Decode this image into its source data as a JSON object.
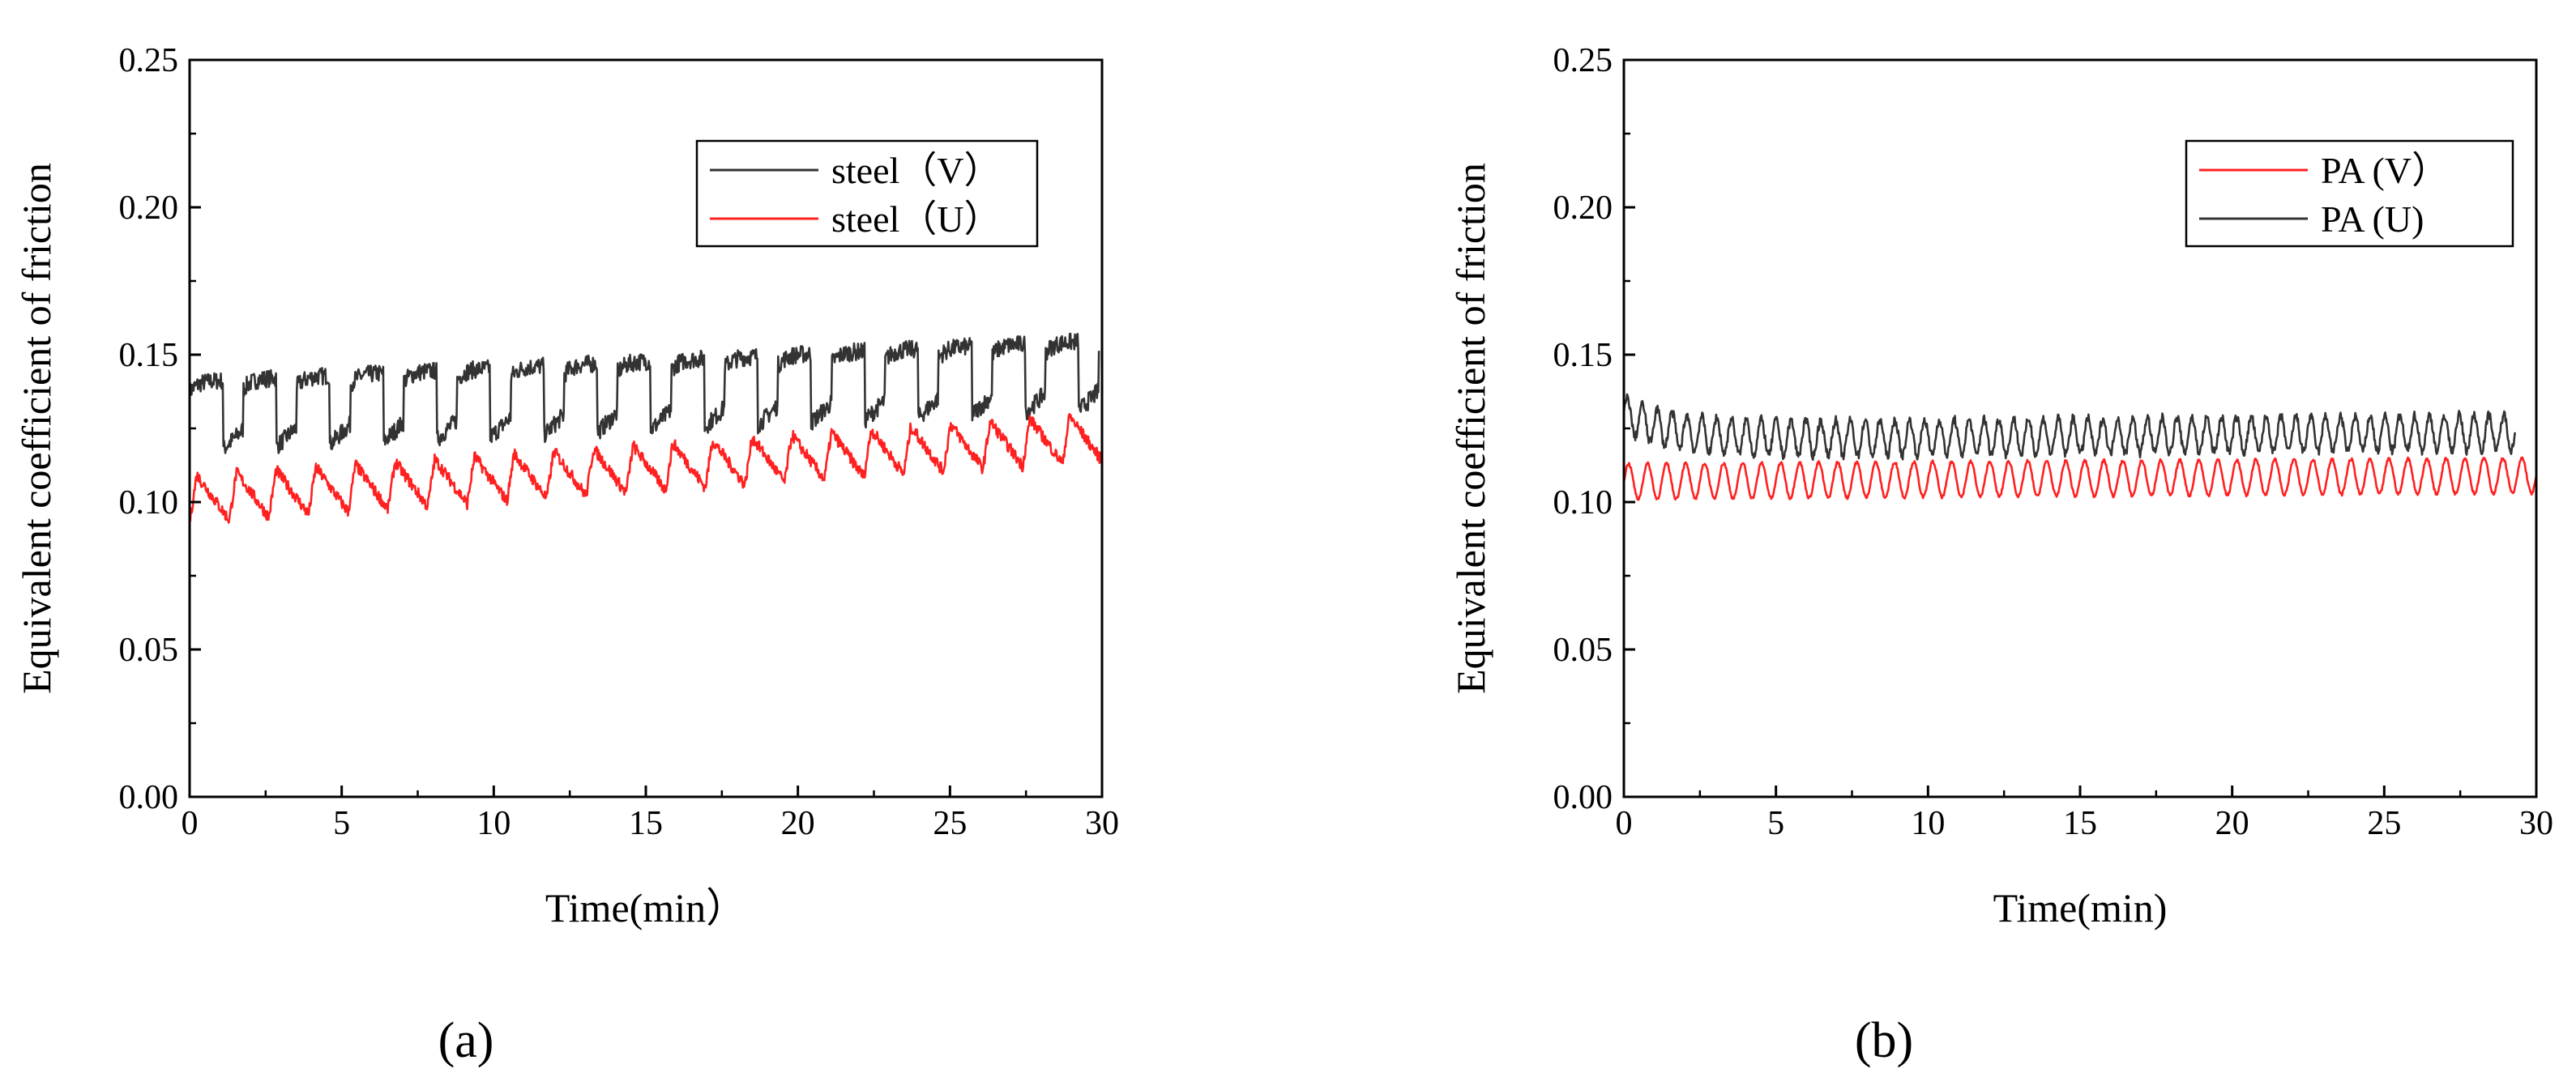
{
  "chart_data": [
    {
      "type": "line",
      "panel_label": "(a)",
      "xlabel": "Time(min）",
      "ylabel": "Equivalent coefficient of friction",
      "xlim": [
        0,
        30
      ],
      "ylim": [
        0,
        0.25
      ],
      "xticks": [
        0,
        5,
        10,
        15,
        20,
        25,
        30
      ],
      "yticks": [
        0.0,
        0.05,
        0.1,
        0.15,
        0.2,
        0.25
      ],
      "xtick_labels": [
        "0",
        "5",
        "10",
        "15",
        "20",
        "25",
        "30"
      ],
      "ytick_labels": [
        "0.00",
        "0.05",
        "0.10",
        "0.15",
        "0.20",
        "0.25"
      ],
      "grid": false,
      "legend_position": "top-right",
      "series": [
        {
          "name": "steel（V）",
          "color": "#333333",
          "x_start": 0,
          "x_end": 29.9,
          "cycles": 17,
          "base_start": 0.129,
          "base_end": 0.143,
          "amplitude": 0.013,
          "noise": 0.003,
          "shape": "square"
        },
        {
          "name": "steel（U）",
          "color": "#ff2020",
          "x_start": 0,
          "x_end": 30,
          "cycles": 23,
          "base_start": 0.101,
          "base_end": 0.122,
          "amplitude": 0.008,
          "noise": 0.002,
          "shape": "saw"
        }
      ]
    },
    {
      "type": "line",
      "panel_label": "(b)",
      "xlabel": "Time(min)",
      "ylabel": "Equivalent coefficient of friction",
      "xlim": [
        0,
        30
      ],
      "ylim": [
        0,
        0.25
      ],
      "xticks": [
        0,
        5,
        10,
        15,
        20,
        25,
        30
      ],
      "yticks": [
        0.0,
        0.05,
        0.1,
        0.15,
        0.2,
        0.25
      ],
      "xtick_labels": [
        "0",
        "5",
        "10",
        "15",
        "20",
        "25",
        "30"
      ],
      "ytick_labels": [
        "0.00",
        "0.05",
        "0.10",
        "0.15",
        "0.20",
        "0.25"
      ],
      "grid": false,
      "legend_position": "top-right",
      "series": [
        {
          "name": "PA (V）",
          "color": "#ff2020",
          "x_start": 0,
          "x_end": 30,
          "cycles": 48,
          "base_start": 0.107,
          "base_end": 0.109,
          "amplitude": 0.006,
          "noise": 0.0005,
          "shape": "sine"
        },
        {
          "name": "PA (U)",
          "color": "#333333",
          "x_start": 0,
          "x_end": 29.3,
          "cycles": 60,
          "base_start": 0.13,
          "base_end": 0.124,
          "amplitude": 0.006,
          "noise": 0.0015,
          "shape": "sine",
          "settle_to": 0.121
        }
      ]
    }
  ]
}
